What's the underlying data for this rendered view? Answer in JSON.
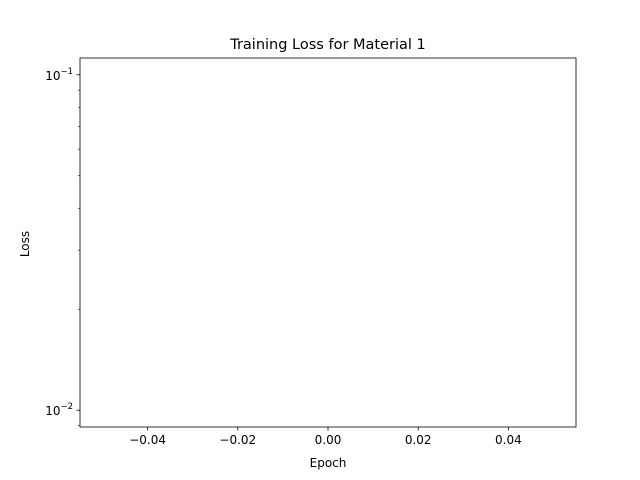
{
  "chart_data": {
    "type": "line",
    "title": "Training Loss for Material 1",
    "xlabel": "Epoch",
    "ylabel": "Loss",
    "x_ticks": [
      -0.04,
      -0.02,
      0.0,
      0.02,
      0.04
    ],
    "x_tick_labels": [
      "−0.04",
      "−0.02",
      "0.00",
      "0.02",
      "0.04"
    ],
    "xlim": [
      -0.055,
      0.055
    ],
    "y_scale": "log",
    "y_major_ticks": [
      0.1,
      0.01
    ],
    "y_tick_labels": [
      {
        "base": "10",
        "exp": "−1"
      },
      {
        "base": "10",
        "exp": "−2"
      }
    ],
    "ylim": [
      0.00891,
      0.1122
    ],
    "grid": false,
    "series": [
      {
        "x": [],
        "y": []
      }
    ]
  }
}
